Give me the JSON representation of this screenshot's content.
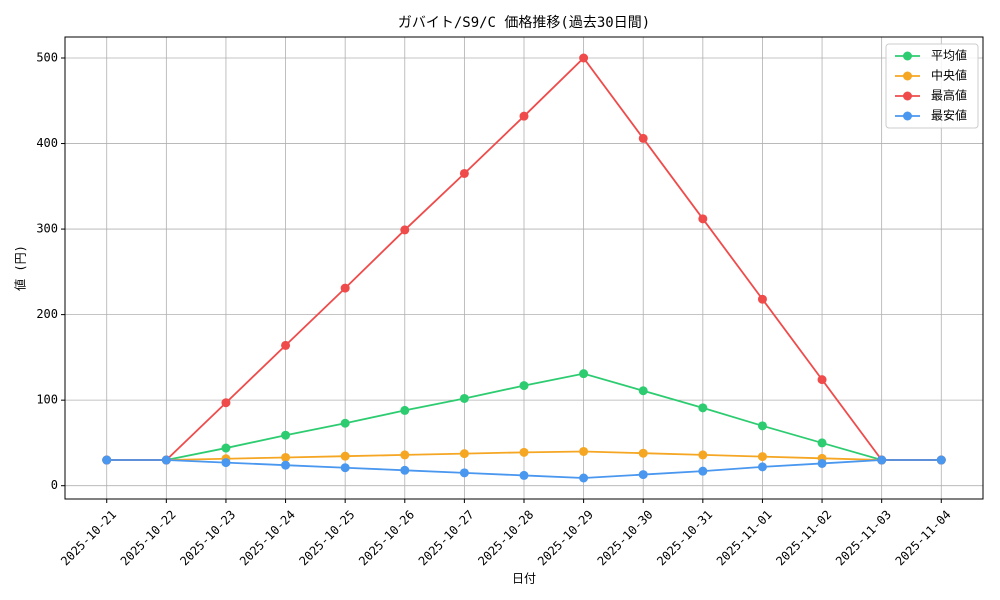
{
  "chart_data": {
    "type": "line",
    "title": "ガバイト/S9/C 価格推移(過去30日間)",
    "xlabel": "日付",
    "ylabel": "値 (円)",
    "categories": [
      "2025-10-21",
      "2025-10-22",
      "2025-10-23",
      "2025-10-24",
      "2025-10-25",
      "2025-10-26",
      "2025-10-27",
      "2025-10-28",
      "2025-10-29",
      "2025-10-30",
      "2025-10-31",
      "2025-11-01",
      "2025-11-02",
      "2025-11-03",
      "2025-11-04"
    ],
    "series": [
      {
        "name": "平均値",
        "color": "#2ecc71",
        "values": [
          30,
          30,
          44,
          59,
          73,
          88,
          102,
          117,
          131,
          111,
          91,
          70,
          50,
          30,
          30
        ]
      },
      {
        "name": "中央値",
        "color": "#f5a623",
        "values": [
          30,
          30,
          31.5,
          33,
          34.5,
          36,
          37.5,
          39,
          40,
          38,
          36,
          34,
          32,
          30,
          30
        ]
      },
      {
        "name": "最高値",
        "color": "#ef4b4b",
        "values": [
          30,
          30,
          97,
          164,
          231,
          299,
          365,
          432,
          500,
          406,
          312,
          218,
          124,
          30,
          30
        ]
      },
      {
        "name": "最安値",
        "color": "#4a97f0",
        "values": [
          30,
          30,
          27,
          24,
          21,
          18,
          15,
          12,
          9,
          13,
          17,
          22,
          26,
          30,
          30
        ]
      }
    ],
    "ylim": [
      -15.55,
      524.55
    ],
    "yticks": [
      0,
      100,
      200,
      300,
      400,
      500
    ],
    "grid": true,
    "legend": "upper right"
  }
}
